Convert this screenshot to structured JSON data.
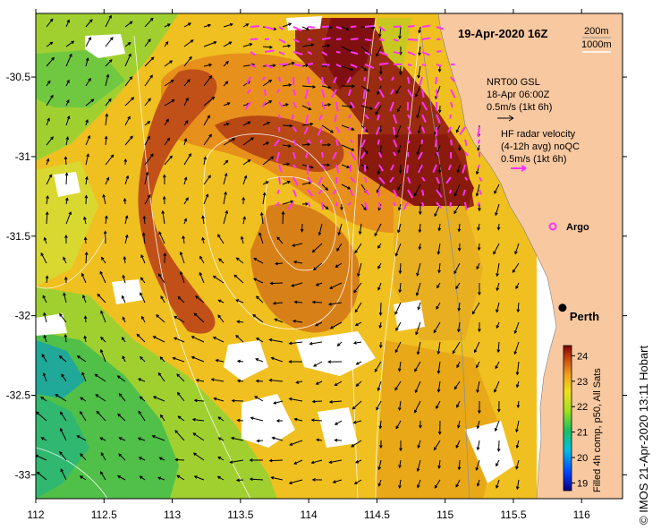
{
  "header": {
    "datetime": "19-Apr-2020 16Z"
  },
  "isobaths": {
    "line1": "200m",
    "line2": "1000m"
  },
  "legend": {
    "gsl_title": "NRT00 GSL",
    "gsl_time": "18-Apr 06:00Z",
    "gsl_scale": "0.5m/s (1kt 6h)",
    "hf_title": "HF radar velocity",
    "hf_sub": "(4-12h avg) noQC",
    "hf_scale": "0.5m/s (1kt 6h)",
    "argo": "Argo"
  },
  "city": {
    "name": "Perth",
    "lon": 115.86,
    "lat": -31.95
  },
  "axes": {
    "lon_ticks": [
      112,
      112.5,
      113,
      113.5,
      114,
      114.5,
      115,
      115.5,
      116
    ],
    "lat_ticks": [
      -30.5,
      -31,
      -31.5,
      -32,
      -32.5,
      -33
    ],
    "lon_range": [
      112,
      116.3
    ],
    "lat_range": [
      -33.15,
      -30.1
    ]
  },
  "colorbar": {
    "ticks": [
      19,
      20,
      21,
      22,
      23,
      24
    ],
    "label": "Filled 4h comp, p50, All Sats"
  },
  "credit": "© IMOS 21-Apr-2020 13:11 Hobart",
  "colors": {
    "land": "#f8c8a0",
    "gsl_arrow": "#000000",
    "hf_arrow": "#ff33ff",
    "argo": "#ff33ff"
  }
}
